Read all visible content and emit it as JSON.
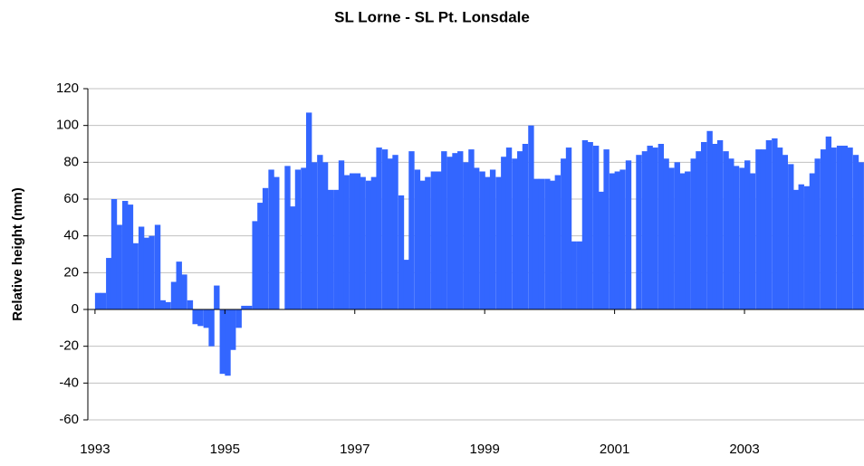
{
  "chart_data": {
    "type": "bar",
    "title": "SL Lorne - SL Pt. Lonsdale",
    "y_label": "Relative height (mm)",
    "color": "#3366ff",
    "grid": true,
    "x": [
      1993.0,
      1993.08,
      1993.17,
      1993.25,
      1993.33,
      1993.42,
      1993.5,
      1993.58,
      1993.67,
      1993.75,
      1993.83,
      1993.92,
      1994.0,
      1994.08,
      1994.17,
      1994.25,
      1994.33,
      1994.42,
      1994.5,
      1994.58,
      1994.67,
      1994.75,
      1994.83,
      1994.92,
      1995.0,
      1995.08,
      1995.17,
      1995.25,
      1995.33,
      1995.42,
      1995.5,
      1995.58,
      1995.67,
      1995.75,
      1995.83,
      1995.92,
      1996.0,
      1996.08,
      1996.17,
      1996.25,
      1996.33,
      1996.42,
      1996.5,
      1996.58,
      1996.67,
      1996.75,
      1996.83,
      1996.92,
      1997.0,
      1997.08,
      1997.17,
      1997.25,
      1997.33,
      1997.42,
      1997.5,
      1997.58,
      1997.67,
      1997.75,
      1997.83,
      1997.92,
      1998.0,
      1998.08,
      1998.17,
      1998.25,
      1998.33,
      1998.42,
      1998.5,
      1998.58,
      1998.67,
      1998.75,
      1998.83,
      1998.92,
      1999.0,
      1999.08,
      1999.17,
      1999.25,
      1999.33,
      1999.42,
      1999.5,
      1999.58,
      1999.67,
      1999.75,
      1999.83,
      1999.92,
      2000.0,
      2000.08,
      2000.17,
      2000.25,
      2000.33,
      2000.42,
      2000.5,
      2000.58,
      2000.67,
      2000.75,
      2000.83,
      2000.92,
      2001.0,
      2001.08,
      2001.17,
      2001.25,
      2001.33,
      2001.42,
      2001.5,
      2001.58,
      2001.67,
      2001.75,
      2001.83,
      2001.92,
      2002.0,
      2002.08,
      2002.17,
      2002.25,
      2002.33,
      2002.42,
      2002.5,
      2002.58,
      2002.67,
      2002.75,
      2002.83,
      2002.92,
      2003.0,
      2003.08,
      2003.17,
      2003.25,
      2003.33,
      2003.42,
      2003.5,
      2003.58,
      2003.67,
      2003.75,
      2003.83,
      2003.92,
      2004.0,
      2004.08,
      2004.17,
      2004.25,
      2004.33,
      2004.42,
      2004.5,
      2004.58,
      2004.67,
      2004.75
    ],
    "values": [
      9,
      9,
      28,
      60,
      46,
      59,
      57,
      36,
      45,
      39,
      40,
      46,
      5,
      4,
      15,
      26,
      19,
      5,
      -8,
      -9,
      -10,
      -20,
      13,
      -35,
      -36,
      -22,
      -10,
      2,
      2,
      48,
      58,
      66,
      76,
      72,
      null,
      78,
      56,
      76,
      77,
      107,
      80,
      84,
      80,
      65,
      65,
      81,
      73,
      74,
      74,
      72,
      70,
      72,
      88,
      87,
      82,
      84,
      62,
      27,
      86,
      76,
      70,
      72,
      75,
      75,
      86,
      83,
      85,
      86,
      80,
      87,
      77,
      75,
      72,
      76,
      72,
      83,
      88,
      82,
      86,
      90,
      100,
      71,
      71,
      71,
      70,
      73,
      82,
      88,
      37,
      37,
      92,
      91,
      89,
      64,
      87,
      74,
      75,
      76,
      81,
      null,
      84,
      86,
      89,
      88,
      90,
      82,
      77,
      80,
      74,
      75,
      82,
      86,
      91,
      97,
      90,
      92,
      86,
      82,
      78,
      77,
      81,
      74,
      87,
      87,
      92,
      93,
      88,
      84,
      79,
      65,
      68,
      67,
      74,
      82,
      87,
      94,
      88,
      89,
      89,
      88,
      84,
      80
    ],
    "xlim": [
      1992.89,
      2004.84
    ],
    "xticks": [
      1993,
      1995,
      1997,
      1999,
      2001,
      2003
    ],
    "ylim": [
      -60,
      120
    ],
    "yticks": [
      -60,
      -40,
      -20,
      0,
      20,
      40,
      60,
      80,
      100,
      120
    ]
  }
}
